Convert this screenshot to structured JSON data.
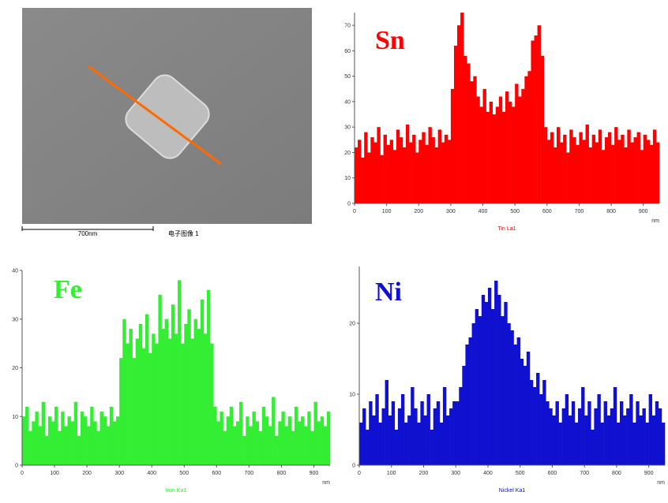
{
  "image": {
    "scale_bar": "700nm",
    "caption": "电子图像 1"
  },
  "chart_data": [
    {
      "type": "bar",
      "title": "Sn",
      "color": "#ff0000",
      "x_label": "Tin La1",
      "x_unit": "nm",
      "x": [
        0,
        10,
        20,
        30,
        40,
        50,
        60,
        70,
        80,
        90,
        100,
        110,
        120,
        130,
        140,
        150,
        160,
        170,
        180,
        190,
        200,
        210,
        220,
        230,
        240,
        250,
        260,
        270,
        280,
        290,
        300,
        310,
        320,
        330,
        340,
        350,
        360,
        370,
        380,
        390,
        400,
        410,
        420,
        430,
        440,
        450,
        460,
        470,
        480,
        490,
        500,
        510,
        520,
        530,
        540,
        550,
        560,
        570,
        580,
        590,
        600,
        610,
        620,
        630,
        640,
        650,
        660,
        670,
        680,
        690,
        700,
        710,
        720,
        730,
        740,
        750,
        760,
        770,
        780,
        790,
        800,
        810,
        820,
        830,
        840,
        850,
        860,
        870,
        880,
        890,
        900,
        910,
        920,
        930,
        940
      ],
      "values": [
        22,
        25,
        18,
        28,
        20,
        26,
        24,
        30,
        19,
        27,
        23,
        25,
        21,
        29,
        26,
        22,
        31,
        24,
        27,
        20,
        25,
        28,
        23,
        30,
        26,
        22,
        29,
        24,
        27,
        25,
        45,
        62,
        70,
        75,
        58,
        55,
        48,
        50,
        42,
        38,
        45,
        36,
        40,
        35,
        38,
        42,
        36,
        44,
        40,
        38,
        47,
        42,
        45,
        50,
        52,
        64,
        66,
        70,
        58,
        30,
        25,
        28,
        22,
        30,
        24,
        27,
        20,
        29,
        26,
        23,
        28,
        25,
        31,
        22,
        27,
        24,
        29,
        21,
        26,
        28,
        23,
        30,
        25,
        27,
        22,
        29,
        24,
        26,
        28,
        21,
        27,
        25,
        23,
        29,
        24
      ],
      "xlim": [
        0,
        950
      ],
      "xticks": [
        0,
        100,
        200,
        300,
        400,
        500,
        600,
        700,
        800,
        900
      ],
      "ylim": [
        0,
        75
      ],
      "yticks": [
        0,
        10,
        20,
        30,
        40,
        50,
        60,
        70
      ]
    },
    {
      "type": "bar",
      "title": "Fe",
      "color": "#33ee33",
      "x_label": "Iron Ka1",
      "x_unit": "nm",
      "x": [
        0,
        10,
        20,
        30,
        40,
        50,
        60,
        70,
        80,
        90,
        100,
        110,
        120,
        130,
        140,
        150,
        160,
        170,
        180,
        190,
        200,
        210,
        220,
        230,
        240,
        250,
        260,
        270,
        280,
        290,
        300,
        310,
        320,
        330,
        340,
        350,
        360,
        370,
        380,
        390,
        400,
        410,
        420,
        430,
        440,
        450,
        460,
        470,
        480,
        490,
        500,
        510,
        520,
        530,
        540,
        550,
        560,
        570,
        580,
        590,
        600,
        610,
        620,
        630,
        640,
        650,
        660,
        670,
        680,
        690,
        700,
        710,
        720,
        730,
        740,
        750,
        760,
        770,
        780,
        790,
        800,
        810,
        820,
        830,
        840,
        850,
        860,
        870,
        880,
        890,
        900,
        910,
        920,
        930,
        940
      ],
      "values": [
        10,
        12,
        7,
        9,
        11,
        8,
        13,
        6,
        10,
        9,
        12,
        7,
        11,
        8,
        10,
        9,
        13,
        6,
        11,
        10,
        8,
        12,
        9,
        7,
        11,
        10,
        8,
        12,
        9,
        10,
        22,
        30,
        25,
        28,
        22,
        26,
        29,
        24,
        31,
        23,
        27,
        25,
        35,
        28,
        30,
        26,
        33,
        27,
        38,
        25,
        29,
        32,
        26,
        30,
        28,
        34,
        27,
        36,
        25,
        12,
        9,
        11,
        7,
        10,
        12,
        8,
        9,
        13,
        6,
        10,
        8,
        11,
        9,
        7,
        12,
        10,
        8,
        14,
        6,
        9,
        11,
        8,
        10,
        7,
        12,
        9,
        10,
        8,
        11,
        7,
        13,
        9,
        10,
        8,
        11
      ],
      "xlim": [
        0,
        950
      ],
      "xticks": [
        0,
        100,
        200,
        300,
        400,
        500,
        600,
        700,
        800,
        900
      ],
      "ylim": [
        0,
        40
      ],
      "yticks": [
        0,
        10,
        20,
        30,
        40
      ]
    },
    {
      "type": "bar",
      "title": "Ni",
      "color": "#1010d0",
      "x_label": "Nickel Ka1",
      "x_unit": "nm",
      "x": [
        0,
        10,
        20,
        30,
        40,
        50,
        60,
        70,
        80,
        90,
        100,
        110,
        120,
        130,
        140,
        150,
        160,
        170,
        180,
        190,
        200,
        210,
        220,
        230,
        240,
        250,
        260,
        270,
        280,
        290,
        300,
        310,
        320,
        330,
        340,
        350,
        360,
        370,
        380,
        390,
        400,
        410,
        420,
        430,
        440,
        450,
        460,
        470,
        480,
        490,
        500,
        510,
        520,
        530,
        540,
        550,
        560,
        570,
        580,
        590,
        600,
        610,
        620,
        630,
        640,
        650,
        660,
        670,
        680,
        690,
        700,
        710,
        720,
        730,
        740,
        750,
        760,
        770,
        780,
        790,
        800,
        810,
        820,
        830,
        840,
        850,
        860,
        870,
        880,
        890,
        900,
        910,
        920,
        930,
        940
      ],
      "values": [
        6,
        8,
        5,
        9,
        7,
        10,
        6,
        8,
        12,
        7,
        9,
        5,
        8,
        10,
        6,
        7,
        11,
        8,
        6,
        9,
        7,
        10,
        5,
        8,
        9,
        6,
        11,
        7,
        8,
        9,
        9,
        11,
        14,
        17,
        18,
        20,
        22,
        21,
        24,
        23,
        25,
        22,
        26,
        24,
        21,
        23,
        20,
        19,
        17,
        18,
        15,
        14,
        16,
        12,
        11,
        13,
        10,
        12,
        9,
        8,
        7,
        9,
        6,
        8,
        10,
        7,
        9,
        6,
        8,
        11,
        7,
        9,
        5,
        8,
        10,
        6,
        9,
        7,
        8,
        11,
        6,
        9,
        7,
        8,
        10,
        6,
        9,
        7,
        8,
        6,
        10,
        7,
        9,
        8,
        6
      ],
      "xlim": [
        0,
        950
      ],
      "xticks": [
        0,
        100,
        200,
        300,
        400,
        500,
        600,
        700,
        800,
        900
      ],
      "ylim": [
        0,
        28
      ],
      "yticks": [
        0,
        10,
        20
      ]
    }
  ]
}
